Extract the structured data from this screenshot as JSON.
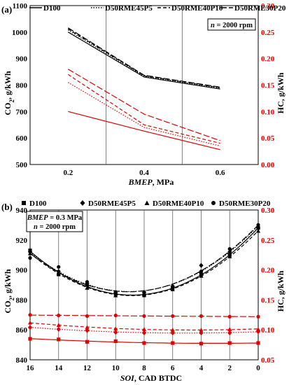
{
  "colors": {
    "black": "#000000",
    "red": "#e00000",
    "grid": "#606060"
  },
  "chart_data": [
    {
      "type": "line",
      "panel_label": "(a)",
      "annotation": "n = 2000 rpm",
      "xlabel": "BMEP, MPa",
      "ylabel": "CO2, g/kWh",
      "ylabel_right": "HC, g/kWh",
      "x": [
        0.2,
        0.4,
        0.6
      ],
      "xticks": [
        "0.2",
        "0.4",
        "0.6"
      ],
      "xlim": [
        0.1,
        0.7
      ],
      "ylim": [
        500,
        1100
      ],
      "yticks": [
        "500",
        "600",
        "700",
        "800",
        "900",
        "1000",
        "1100"
      ],
      "ylim_right": [
        0,
        0.3
      ],
      "yticks_right": [
        "0.00",
        "0.05",
        "0.10",
        "0.15",
        "0.20",
        "0.25",
        "0.30"
      ],
      "vlines": [
        0.3,
        0.5
      ],
      "legend": [
        "D100",
        "D50RME45P5",
        "D50RME40P10",
        "D50RME30P20"
      ],
      "series": [
        {
          "name": "D100",
          "axis": "left",
          "color": "black",
          "dash": "solid",
          "values": [
            1000,
            830,
            785
          ]
        },
        {
          "name": "D50RME45P5",
          "axis": "left",
          "color": "black",
          "dash": "dot",
          "values": [
            1008,
            833,
            788
          ]
        },
        {
          "name": "D50RME40P10",
          "axis": "left",
          "color": "black",
          "dash": "dash",
          "values": [
            1012,
            835,
            790
          ]
        },
        {
          "name": "D50RME30P20",
          "axis": "left",
          "color": "black",
          "dash": "longdash",
          "values": [
            1016,
            837,
            792
          ]
        },
        {
          "name": "D100",
          "axis": "right",
          "color": "red",
          "dash": "solid",
          "values": [
            0.1,
            0.063,
            0.028
          ]
        },
        {
          "name": "D50RME45P5",
          "axis": "right",
          "color": "red",
          "dash": "dot",
          "values": [
            0.155,
            0.07,
            0.035
          ]
        },
        {
          "name": "D50RME40P10",
          "axis": "right",
          "color": "red",
          "dash": "dash",
          "values": [
            0.17,
            0.075,
            0.04
          ]
        },
        {
          "name": "D50RME30P20",
          "axis": "right",
          "color": "red",
          "dash": "longdash",
          "values": [
            0.18,
            0.095,
            0.045
          ]
        }
      ]
    },
    {
      "type": "line",
      "panel_label": "(b)",
      "annotation_line1": "BMEP = 0.3 MPa",
      "annotation_line2": "n = 2000 rpm",
      "xlabel": "SOI, CAD BTDC",
      "ylabel": "CO2, g/kWh",
      "ylabel_right": "HC, g/kWh",
      "x": [
        16,
        14,
        12,
        10,
        8,
        6,
        4,
        2,
        0
      ],
      "xticks": [
        "16",
        "14",
        "12",
        "10",
        "8",
        "6",
        "4",
        "2",
        "0"
      ],
      "xlim": [
        16,
        0
      ],
      "ylim": [
        840,
        940
      ],
      "yticks": [
        "840",
        "860",
        "880",
        "900",
        "920",
        "940"
      ],
      "ylim_right": [
        0.05,
        0.3
      ],
      "yticks_right": [
        "0.05",
        "0.10",
        "0.15",
        "0.20",
        "0.25",
        "0.30"
      ],
      "vlines": [
        14,
        12,
        10,
        8,
        6,
        4,
        2
      ],
      "legend": [
        "D100",
        "D50RME45P5",
        "D50RME40P10",
        "D50RME30P20"
      ],
      "series": [
        {
          "name": "D100",
          "axis": "left",
          "color": "black",
          "marker": "square",
          "values": [
            913,
            897,
            890,
            884,
            883,
            888,
            897,
            910,
            928
          ]
        },
        {
          "name": "D50RME45P5",
          "axis": "left",
          "color": "black",
          "marker": "diamond",
          "values": [
            912,
            899,
            891,
            885,
            885,
            889,
            903,
            912,
            928
          ]
        },
        {
          "name": "D50RME40P10",
          "axis": "left",
          "color": "black",
          "marker": "triangle",
          "values": [
            911,
            898,
            888,
            883,
            884,
            887,
            896,
            909,
            926
          ]
        },
        {
          "name": "D50RME30P20",
          "axis": "left",
          "color": "black",
          "marker": "circle",
          "values": [
            908,
            902,
            892,
            885,
            885,
            889,
            899,
            914,
            930
          ]
        },
        {
          "name": "D100",
          "axis": "right",
          "color": "red",
          "marker": "square",
          "values": [
            0.085,
            0.084,
            0.08,
            0.081,
            0.078,
            0.078,
            0.077,
            0.078,
            0.078
          ]
        },
        {
          "name": "D50RME45P5",
          "axis": "right",
          "color": "red",
          "marker": "diamond",
          "values": [
            0.104,
            0.101,
            0.099,
            0.096,
            0.095,
            0.095,
            0.095,
            0.095,
            0.097
          ]
        },
        {
          "name": "D50RME40P10",
          "axis": "right",
          "color": "red",
          "marker": "triangle",
          "values": [
            0.112,
            0.108,
            0.104,
            0.102,
            0.101,
            0.1,
            0.1,
            0.101,
            0.101
          ]
        },
        {
          "name": "D50RME30P20",
          "axis": "right",
          "color": "red",
          "marker": "circle",
          "values": [
            0.125,
            0.124,
            0.123,
            0.124,
            0.123,
            0.123,
            0.123,
            0.122,
            0.122
          ]
        }
      ]
    }
  ]
}
